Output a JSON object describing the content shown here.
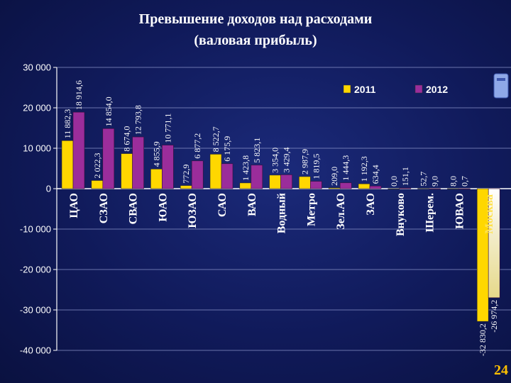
{
  "title_line1": "Превышение доходов над расходами",
  "title_line2": "(валовая прибыль)",
  "page_number": "24",
  "chart_data": {
    "type": "bar",
    "title": "Превышение доходов над расходами (валовая прибыль)",
    "categories": [
      "ЦАО",
      "СЗАО",
      "СВАО",
      "ЮАО",
      "ЮЗАО",
      "САО",
      "ВАО",
      "Водный",
      "Метро",
      "Зел.АО",
      "ЗАО",
      "Внуково",
      "Шерем.",
      "ЮВАО",
      "Москва"
    ],
    "series": [
      {
        "name": "2011",
        "color": "#ffd700",
        "values": [
          11882.3,
          2022.3,
          8674.0,
          4855.9,
          772.9,
          8522.7,
          1423.8,
          3354.0,
          2987.9,
          209.0,
          1192.3,
          0.0,
          52.7,
          8.0,
          -32830.2
        ],
        "labels": [
          "11 882,3",
          "2 022,3",
          "8 674,0",
          "4 855,9",
          "772,9",
          "8 522,7",
          "1 423,8",
          "3 354,0",
          "2 987,9",
          "209,0",
          "1 192,3",
          "0,0",
          "52,7",
          "8,0",
          "-32 830,2"
        ]
      },
      {
        "name": "2012",
        "color": "#9b2d9b",
        "values": [
          18914.6,
          14854.0,
          12793.8,
          10771.1,
          6877.2,
          6175.9,
          5823.1,
          3429.4,
          1819.5,
          1444.3,
          634.4,
          151.1,
          9.0,
          0.7,
          -26974.2
        ],
        "labels": [
          "18 914,6",
          "14 854,0",
          "12 793,8",
          "10 771,1",
          "6 877,2",
          "6 175,9",
          "5 823,1",
          "3 429,4",
          "1 819,5",
          "1 444,3",
          "634,4",
          "151,1",
          "9,0",
          "0,7",
          "-26 974,2"
        ]
      }
    ],
    "yticks": [
      30000,
      20000,
      10000,
      0,
      -10000,
      -20000,
      -30000,
      -40000
    ],
    "ytick_labels": [
      "30 000",
      "20 000",
      "10 000",
      "0",
      "-10 000",
      "-20 000",
      "-30 000",
      "-40 000"
    ],
    "ylim": [
      -40000,
      30000
    ],
    "grid": true,
    "legend_position": "top-right",
    "xlabel": "",
    "ylabel": ""
  }
}
